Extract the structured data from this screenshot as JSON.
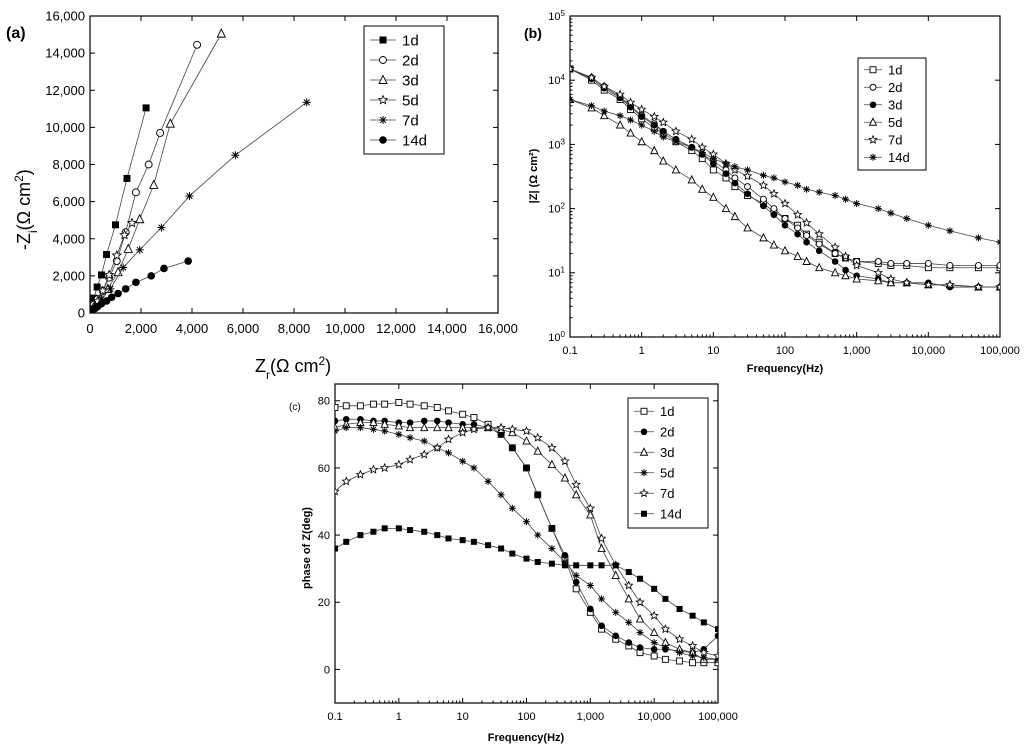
{
  "chart_data": [
    {
      "id": "a",
      "panel_label": "(a)",
      "type": "scatter",
      "xlabel_main": "Z",
      "xlabel_sub": "r",
      "xlabel_rest": "(Ω cm",
      "xlabel_sup": "2",
      "xlabel_end": ")",
      "ylabel_main": "-Z",
      "ylabel_sub": "i",
      "ylabel_rest": "(Ω cm",
      "ylabel_sup": "2",
      "ylabel_end": ")",
      "xlim": [
        0,
        16000
      ],
      "ylim": [
        0,
        16000
      ],
      "xticks": [
        "0",
        "2,000",
        "4,000",
        "6,000",
        "8,000",
        "10,000",
        "12,000",
        "14,000",
        "16,000"
      ],
      "yticks": [
        "0",
        "2,000",
        "4,000",
        "6,000",
        "8,000",
        "10,000",
        "12,000",
        "14,000",
        "16,000"
      ],
      "legend_position": "top-right",
      "series": [
        {
          "name": "1d",
          "marker": "square-filled",
          "x": [
            50,
            150,
            280,
            450,
            650,
            1000,
            1450,
            2200
          ],
          "y": [
            300,
            800,
            1400,
            2050,
            3150,
            4750,
            7250,
            11050
          ]
        },
        {
          "name": "2d",
          "marker": "circle-open",
          "x": [
            50,
            150,
            300,
            500,
            750,
            1050,
            1400,
            1800,
            2300,
            2750,
            4200
          ],
          "y": [
            200,
            450,
            750,
            1200,
            1900,
            2800,
            4350,
            6500,
            8000,
            9700,
            14450
          ]
        },
        {
          "name": "3d",
          "marker": "triangle-open",
          "x": [
            50,
            200,
            400,
            700,
            1100,
            1500,
            1950,
            2500,
            3150,
            5150
          ],
          "y": [
            150,
            400,
            750,
            1300,
            2200,
            3450,
            5050,
            6900,
            10200,
            15050
          ]
        },
        {
          "name": "5d",
          "marker": "star-open",
          "x": [
            50,
            150,
            300,
            500,
            750,
            1050,
            1350,
            1650
          ],
          "y": [
            100,
            300,
            650,
            1200,
            2050,
            3100,
            4200,
            4850
          ]
        },
        {
          "name": "7d",
          "marker": "asterisk",
          "x": [
            50,
            200,
            450,
            800,
            1300,
            1950,
            2800,
            3900,
            5700,
            8500
          ],
          "y": [
            100,
            350,
            750,
            1300,
            2450,
            3400,
            4600,
            6300,
            8500,
            11350
          ]
        },
        {
          "name": "14d",
          "marker": "circle-filled",
          "x": [
            30,
            100,
            200,
            300,
            450,
            650,
            850,
            1100,
            1400,
            1800,
            2400,
            2900,
            3850
          ],
          "y": [
            50,
            150,
            250,
            350,
            500,
            650,
            850,
            1050,
            1300,
            1650,
            2000,
            2400,
            2800
          ]
        }
      ]
    },
    {
      "id": "b",
      "panel_label": "(b)",
      "type": "line",
      "xscale": "log",
      "yscale": "log",
      "xlabel": "Frequency(Hz)",
      "ylabel": "|Z| (Ω cm²)",
      "xlim": [
        0.1,
        100000
      ],
      "ylim": [
        1,
        100000
      ],
      "xticks": [
        "0.1",
        "1",
        "10",
        "100",
        "1,000",
        "10,000",
        "100,000"
      ],
      "yticks_base": [
        "10",
        "10",
        "10",
        "10",
        "10",
        "10"
      ],
      "yticks_exp": [
        "0",
        "1",
        "2",
        "3",
        "4",
        "5"
      ],
      "legend_position": "top-right",
      "series": [
        {
          "name": "1d",
          "marker": "square-open",
          "x": [
            0.1,
            0.2,
            0.3,
            0.5,
            0.7,
            1,
            1.5,
            2,
            3,
            5,
            7,
            10,
            15,
            20,
            30,
            50,
            70,
            100,
            150,
            200,
            300,
            500,
            700,
            1000,
            2000,
            3000,
            5000,
            10000,
            20000,
            50000,
            100000
          ],
          "y": [
            15000,
            10000,
            7000,
            5000,
            3500,
            2500,
            1800,
            1500,
            1100,
            800,
            600,
            400,
            300,
            220,
            160,
            120,
            90,
            70,
            55,
            40,
            30,
            20,
            17,
            15,
            14,
            13,
            13,
            12,
            12,
            12,
            12
          ]
        },
        {
          "name": "2d",
          "marker": "circle-open",
          "x": [
            0.1,
            0.2,
            0.3,
            0.5,
            0.7,
            1,
            1.5,
            2,
            3,
            5,
            7,
            10,
            15,
            20,
            30,
            50,
            70,
            100,
            150,
            200,
            300,
            500,
            700,
            1000,
            2000,
            3000,
            5000,
            10000,
            20000,
            50000,
            100000
          ],
          "y": [
            15000,
            11000,
            8000,
            5500,
            4000,
            2800,
            2100,
            1600,
            1200,
            900,
            700,
            550,
            400,
            300,
            220,
            140,
            100,
            70,
            50,
            38,
            28,
            20,
            17,
            15,
            15,
            14,
            14,
            14,
            13,
            13,
            13
          ]
        },
        {
          "name": "3d",
          "marker": "circle-filled",
          "x": [
            0.1,
            0.2,
            0.3,
            0.5,
            0.7,
            1,
            1.5,
            2,
            3,
            5,
            7,
            10,
            15,
            20,
            30,
            50,
            70,
            100,
            150,
            200,
            300,
            500,
            700,
            1000,
            2000,
            3000,
            5000,
            10000,
            20000,
            50000,
            100000
          ],
          "y": [
            15000,
            10500,
            7500,
            5300,
            3800,
            2700,
            2000,
            1600,
            1200,
            900,
            700,
            500,
            350,
            250,
            170,
            110,
            80,
            55,
            40,
            30,
            22,
            15,
            11,
            9,
            8,
            7,
            7,
            7,
            6,
            6,
            6
          ]
        },
        {
          "name": "5d",
          "marker": "triangle-open",
          "x": [
            0.1,
            0.2,
            0.3,
            0.5,
            0.7,
            1,
            1.5,
            2,
            3,
            5,
            7,
            10,
            15,
            20,
            30,
            50,
            70,
            100,
            150,
            200,
            300,
            500,
            700,
            1000,
            2000,
            3000,
            5000,
            10000,
            20000,
            50000,
            100000
          ],
          "y": [
            5000,
            3700,
            2800,
            2000,
            1500,
            1100,
            800,
            550,
            400,
            280,
            200,
            150,
            100,
            75,
            50,
            35,
            27,
            22,
            18,
            15,
            12,
            10,
            9,
            8,
            7.5,
            7,
            7,
            6.5,
            6.5,
            6,
            6
          ]
        },
        {
          "name": "7d",
          "marker": "star-open",
          "x": [
            0.1,
            0.2,
            0.3,
            0.5,
            0.7,
            1,
            1.5,
            2,
            3,
            5,
            7,
            10,
            15,
            20,
            30,
            50,
            70,
            100,
            150,
            200,
            300,
            500,
            700,
            1000,
            2000,
            3000,
            5000,
            10000,
            20000,
            50000,
            100000
          ],
          "y": [
            15000,
            11000,
            8000,
            6000,
            4500,
            3500,
            2700,
            2200,
            1600,
            1200,
            900,
            700,
            500,
            400,
            320,
            230,
            170,
            120,
            80,
            60,
            40,
            25,
            18,
            13,
            10,
            8,
            7,
            6.5,
            6.5,
            6,
            6
          ]
        },
        {
          "name": "14d",
          "marker": "asterisk",
          "x": [
            0.1,
            0.2,
            0.3,
            0.5,
            0.7,
            1,
            1.5,
            2,
            3,
            5,
            7,
            10,
            15,
            20,
            30,
            50,
            70,
            100,
            150,
            200,
            300,
            500,
            700,
            1000,
            2000,
            3000,
            5000,
            10000,
            20000,
            50000,
            100000
          ],
          "y": [
            5000,
            4000,
            3300,
            2800,
            2400,
            2000,
            1600,
            1300,
            1100,
            900,
            750,
            600,
            500,
            450,
            400,
            330,
            300,
            260,
            230,
            200,
            180,
            160,
            140,
            120,
            100,
            85,
            70,
            55,
            45,
            35,
            30
          ]
        }
      ]
    },
    {
      "id": "c",
      "panel_label": "(c)",
      "type": "line",
      "xscale": "log",
      "xlabel": "Frequency(Hz)",
      "ylabel": "phase of Z(deg)",
      "xlim": [
        0.1,
        100000
      ],
      "ylim": [
        -10,
        85
      ],
      "xticks": [
        "0.1",
        "1",
        "10",
        "100",
        "1,000",
        "10,000",
        "100,000"
      ],
      "yticks": [
        "0",
        "20",
        "40",
        "60",
        "80"
      ],
      "legend_position": "top-right",
      "series": [
        {
          "name": "1d",
          "marker": "square-open",
          "x": [
            0.1,
            0.15,
            0.25,
            0.4,
            0.6,
            1,
            1.5,
            2.5,
            4,
            6,
            10,
            15,
            25,
            40,
            60,
            100,
            150,
            250,
            400,
            600,
            1000,
            1500,
            2500,
            4000,
            6000,
            10000,
            15000,
            25000,
            40000,
            60000,
            100000
          ],
          "y": [
            78,
            78.5,
            78.5,
            79,
            79,
            79.5,
            79,
            78.5,
            78,
            77,
            76,
            75,
            73,
            70,
            66,
            60,
            52,
            42,
            33,
            24,
            17,
            12,
            9,
            7,
            5,
            4,
            3,
            2.5,
            2,
            2,
            2
          ]
        },
        {
          "name": "2d",
          "marker": "circle-filled",
          "x": [
            0.1,
            0.15,
            0.25,
            0.4,
            0.6,
            1,
            1.5,
            2.5,
            4,
            6,
            10,
            15,
            25,
            40,
            60,
            100,
            150,
            250,
            400,
            600,
            1000,
            1500,
            2500,
            4000,
            6000,
            10000,
            15000,
            25000,
            40000,
            60000,
            100000
          ],
          "y": [
            74,
            74.5,
            74.5,
            74,
            74,
            73.5,
            73.5,
            74,
            74,
            73.5,
            73,
            73,
            72,
            70,
            66,
            60,
            52,
            42,
            34,
            26,
            18,
            13,
            10,
            8,
            6.5,
            6,
            6,
            5.5,
            5,
            6,
            10
          ]
        },
        {
          "name": "3d",
          "marker": "triangle-open",
          "x": [
            0.1,
            0.15,
            0.25,
            0.4,
            0.6,
            1,
            1.5,
            2.5,
            4,
            6,
            10,
            15,
            25,
            40,
            60,
            100,
            150,
            250,
            400,
            600,
            1000,
            1500,
            2500,
            4000,
            6000,
            10000,
            15000,
            25000,
            40000,
            60000,
            100000
          ],
          "y": [
            72,
            73,
            73.5,
            73.5,
            73,
            72.5,
            72,
            72,
            72,
            72,
            72,
            72,
            72,
            71.5,
            70.5,
            68,
            65,
            61,
            57,
            52,
            46,
            36,
            28,
            21,
            15,
            11,
            8,
            6,
            5,
            3,
            3
          ]
        },
        {
          "name": "5d",
          "marker": "asterisk",
          "x": [
            0.1,
            0.15,
            0.25,
            0.4,
            0.6,
            1,
            1.5,
            2.5,
            4,
            6,
            10,
            15,
            25,
            40,
            60,
            100,
            150,
            250,
            400,
            600,
            1000,
            1500,
            2500,
            4000,
            6000,
            10000,
            15000,
            25000,
            40000,
            60000,
            100000
          ],
          "y": [
            71,
            72,
            72,
            71.5,
            71,
            70,
            69,
            68,
            66,
            64.5,
            62,
            60,
            56,
            52,
            48,
            44,
            40,
            36,
            32,
            28,
            25,
            21,
            17,
            14,
            11,
            8,
            6.5,
            5,
            4,
            3.5,
            3
          ]
        },
        {
          "name": "7d",
          "marker": "star-open",
          "x": [
            0.1,
            0.15,
            0.25,
            0.4,
            0.6,
            1,
            1.5,
            2.5,
            4,
            6,
            10,
            15,
            25,
            40,
            60,
            100,
            150,
            250,
            400,
            600,
            1000,
            1500,
            2500,
            4000,
            6000,
            10000,
            15000,
            25000,
            40000,
            60000,
            100000
          ],
          "y": [
            53,
            56,
            58,
            59.5,
            60,
            61,
            62.5,
            64,
            66,
            68.5,
            70.5,
            71.5,
            72,
            72,
            71.5,
            71,
            69,
            66,
            62,
            55,
            48,
            39,
            31,
            25,
            20,
            16,
            12,
            9,
            7,
            5,
            4
          ]
        },
        {
          "name": "14d",
          "marker": "square-filled",
          "x": [
            0.1,
            0.15,
            0.25,
            0.4,
            0.6,
            1,
            1.5,
            2.5,
            4,
            6,
            10,
            15,
            25,
            40,
            60,
            100,
            150,
            250,
            400,
            600,
            1000,
            1500,
            2500,
            4000,
            6000,
            10000,
            15000,
            25000,
            40000,
            60000,
            100000
          ],
          "y": [
            36,
            38,
            40,
            41,
            42,
            42,
            41.5,
            41,
            40,
            39,
            38.5,
            38,
            37,
            36,
            34.5,
            33,
            32,
            31.5,
            31,
            31,
            31,
            31,
            31,
            29,
            27,
            24,
            21,
            18,
            16,
            14,
            12
          ]
        }
      ]
    }
  ]
}
